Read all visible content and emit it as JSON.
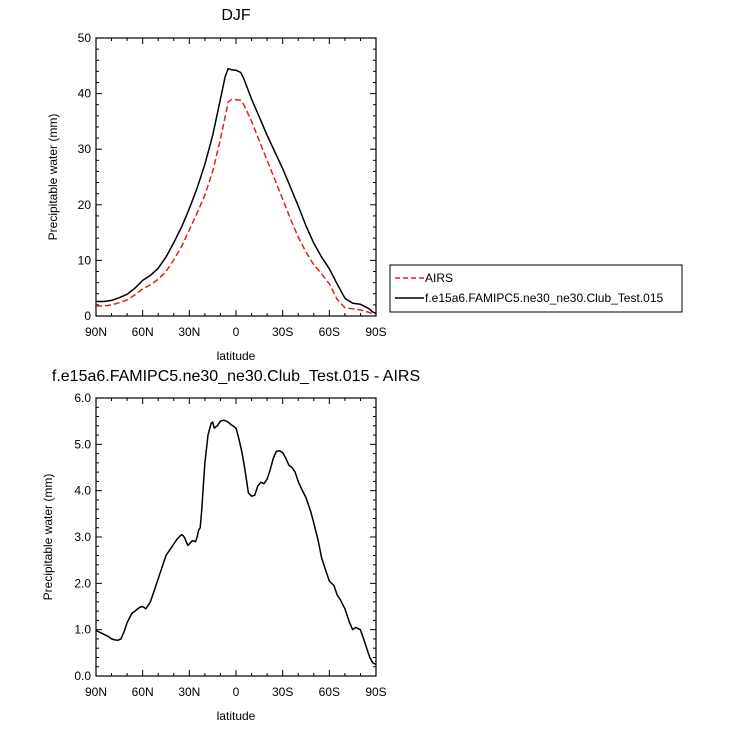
{
  "chart_data": [
    {
      "type": "line",
      "title": "DJF",
      "xlabel": "latitude",
      "ylabel": "Precipitable water (mm)",
      "xlim": [
        90,
        -90
      ],
      "ylim": [
        0,
        50
      ],
      "x_ticks": [
        90,
        60,
        30,
        0,
        -30,
        -60,
        -90
      ],
      "x_tick_labels": [
        "90N",
        "60N",
        "30N",
        "0",
        "30S",
        "60S",
        "90S"
      ],
      "y_ticks": [
        0,
        10,
        20,
        30,
        40,
        50
      ],
      "y_tick_labels": [
        "0",
        "10",
        "20",
        "30",
        "40",
        "50"
      ],
      "legend": {
        "placement": "right",
        "entries": [
          "AIRS",
          "f.e15a6.FAMIPC5.ne30_ne30.Club_Test.015"
        ]
      },
      "series": [
        {
          "name": "AIRS",
          "color": "#e02020",
          "style": "dashed",
          "x": [
            90,
            85,
            80,
            75,
            70,
            65,
            60,
            55,
            50,
            45,
            40,
            35,
            30,
            25,
            20,
            15,
            10,
            7,
            5,
            3,
            0,
            -3,
            -5,
            -10,
            -15,
            -20,
            -25,
            -30,
            -35,
            -40,
            -45,
            -50,
            -55,
            -60,
            -65,
            -70,
            -75,
            -80,
            -85,
            -88,
            -90
          ],
          "y": [
            1.8,
            1.8,
            2.0,
            2.4,
            2.9,
            3.8,
            4.9,
            5.6,
            6.6,
            8.0,
            10.1,
            12.5,
            15.5,
            18.5,
            21.8,
            26.0,
            31.8,
            35.8,
            38.5,
            38.9,
            38.9,
            38.8,
            38.0,
            35.0,
            31.5,
            28.0,
            24.5,
            21.0,
            17.5,
            14.2,
            11.5,
            9.2,
            7.6,
            5.8,
            3.0,
            1.5,
            1.3,
            1.1,
            0.7,
            0.4,
            0.3
          ]
        },
        {
          "name": "f.e15a6.FAMIPC5.ne30_ne30.Club_Test.015",
          "color": "#000000",
          "style": "solid",
          "x": [
            90,
            85,
            80,
            75,
            70,
            65,
            60,
            55,
            50,
            45,
            40,
            35,
            30,
            25,
            20,
            15,
            10,
            7,
            5,
            3,
            0,
            -3,
            -5,
            -10,
            -15,
            -20,
            -25,
            -30,
            -35,
            -40,
            -45,
            -50,
            -55,
            -60,
            -65,
            -70,
            -75,
            -80,
            -85,
            -88,
            -90
          ],
          "y": [
            2.6,
            2.6,
            2.8,
            3.3,
            3.9,
            5.0,
            6.4,
            7.3,
            8.6,
            10.6,
            13.2,
            16.0,
            19.3,
            23.0,
            27.3,
            32.5,
            39.0,
            43.0,
            44.5,
            44.3,
            44.2,
            43.8,
            42.7,
            39.0,
            35.8,
            32.5,
            29.5,
            26.5,
            23.2,
            19.8,
            16.2,
            13.1,
            10.6,
            8.5,
            5.8,
            3.2,
            2.3,
            2.1,
            1.4,
            0.7,
            0.5
          ]
        }
      ]
    },
    {
      "type": "line",
      "title": "f.e15a6.FAMIPC5.ne30_ne30.Club_Test.015 - AIRS",
      "xlabel": "latitude",
      "ylabel": "Precipitable water (mm)",
      "xlim": [
        90,
        -90
      ],
      "ylim": [
        0,
        6
      ],
      "x_ticks": [
        90,
        60,
        30,
        0,
        -30,
        -60,
        -90
      ],
      "x_tick_labels": [
        "90N",
        "60N",
        "30N",
        "0",
        "30S",
        "60S",
        "90S"
      ],
      "y_ticks": [
        0,
        1,
        2,
        3,
        4,
        5,
        6
      ],
      "y_tick_labels": [
        "0.0",
        "1.0",
        "2.0",
        "3.0",
        "4.0",
        "5.0",
        "6.0"
      ],
      "series": [
        {
          "name": "f.e15a6.FAMIPC5.ne30_ne30.Club_Test.015 - AIRS",
          "color": "#000000",
          "style": "solid",
          "x": [
            90,
            88,
            85,
            82,
            80,
            78,
            76,
            74,
            72,
            70,
            67,
            65,
            62,
            60,
            58,
            55,
            52,
            50,
            47,
            45,
            42,
            40,
            38,
            36,
            35,
            34,
            33,
            32,
            31,
            30,
            28,
            26,
            25,
            24,
            23,
            22,
            21,
            20,
            18,
            16,
            15,
            14,
            12,
            10,
            8,
            6,
            4,
            3,
            2,
            0,
            -2,
            -4,
            -6,
            -8,
            -10,
            -12,
            -14,
            -16,
            -18,
            -20,
            -22,
            -24,
            -26,
            -28,
            -30,
            -32,
            -34,
            -36,
            -38,
            -40,
            -42,
            -45,
            -48,
            -50,
            -53,
            -55,
            -58,
            -60,
            -63,
            -65,
            -67,
            -70,
            -73,
            -75,
            -77,
            -80,
            -82,
            -84,
            -86,
            -88,
            -90
          ],
          "y": [
            0.98,
            0.95,
            0.9,
            0.85,
            0.8,
            0.78,
            0.77,
            0.8,
            0.95,
            1.15,
            1.35,
            1.4,
            1.48,
            1.5,
            1.45,
            1.6,
            1.9,
            2.1,
            2.4,
            2.6,
            2.75,
            2.85,
            2.95,
            3.02,
            3.05,
            3.03,
            2.98,
            2.9,
            2.82,
            2.85,
            2.92,
            2.9,
            3.0,
            3.15,
            3.2,
            3.6,
            4.1,
            4.6,
            5.2,
            5.45,
            5.48,
            5.35,
            5.4,
            5.5,
            5.52,
            5.5,
            5.45,
            5.42,
            5.4,
            5.35,
            5.1,
            4.8,
            4.4,
            3.95,
            3.88,
            3.9,
            4.1,
            4.18,
            4.15,
            4.25,
            4.45,
            4.7,
            4.85,
            4.86,
            4.82,
            4.7,
            4.55,
            4.5,
            4.4,
            4.2,
            4.05,
            3.85,
            3.55,
            3.3,
            2.9,
            2.55,
            2.25,
            2.05,
            1.95,
            1.75,
            1.65,
            1.45,
            1.15,
            1.0,
            1.05,
            1.0,
            0.8,
            0.6,
            0.4,
            0.28,
            0.25
          ]
        }
      ]
    }
  ]
}
